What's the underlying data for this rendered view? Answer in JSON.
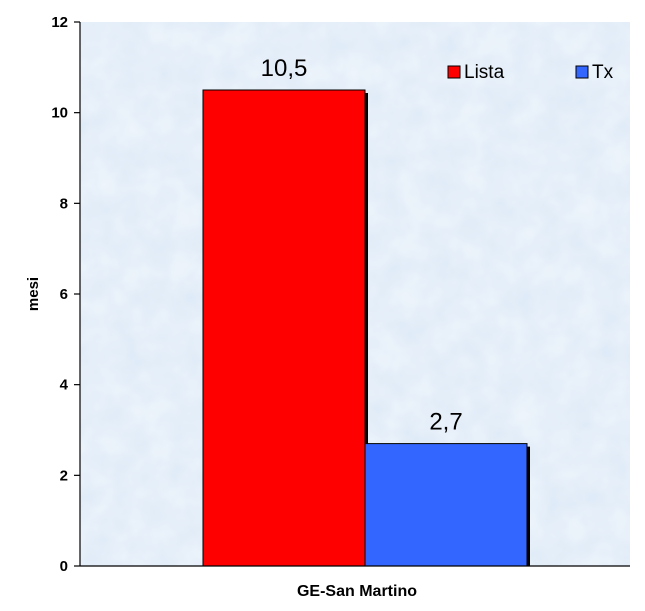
{
  "chart_data": {
    "type": "bar",
    "categories": [
      "GE-San Martino"
    ],
    "series": [
      {
        "name": "Lista",
        "values": [
          10.5
        ],
        "label": "10,5",
        "color": "#ff0000"
      },
      {
        "name": "Tx",
        "values": [
          2.7
        ],
        "label": "2,7",
        "color": "#3366ff"
      }
    ],
    "xlabel": "GE-San Martino",
    "ylabel": "mesi",
    "ylim": [
      0,
      12
    ],
    "yticks": [
      0,
      2,
      4,
      6,
      8,
      10,
      12
    ],
    "grid": false,
    "legend": "top-right",
    "background": "#dce9f7"
  }
}
